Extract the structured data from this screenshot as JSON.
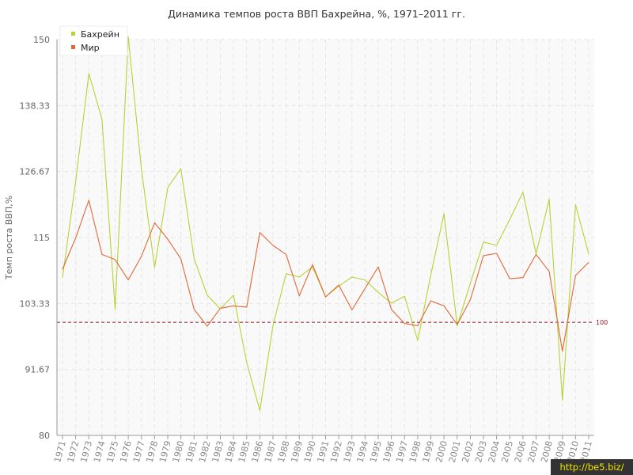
{
  "chart_data": {
    "type": "line",
    "title": "Динамика темпов роста ВВП Бахрейна, %, 1971–2011 гг.",
    "ylabel": "Темп роста ВВП,%",
    "xlabel": "",
    "ylim": [
      80,
      150
    ],
    "yticks": [
      "80",
      "91.67",
      "103.33",
      "115",
      "126.67",
      "138.33",
      "150"
    ],
    "x": [
      "1971",
      "1972",
      "1973",
      "1974",
      "1975",
      "1976",
      "1977",
      "1978",
      "1979",
      "1980",
      "1981",
      "1982",
      "1983",
      "1984",
      "1985",
      "1986",
      "1987",
      "1988",
      "1989",
      "1990",
      "1991",
      "1992",
      "1993",
      "1994",
      "1995",
      "1996",
      "1997",
      "1998",
      "1999",
      "2000",
      "2001",
      "2002",
      "2003",
      "2004",
      "2005",
      "2006",
      "2007",
      "2008",
      "2009",
      "2010",
      "2011"
    ],
    "series": [
      {
        "name": "Бахрейн",
        "color": "#b5d334",
        "values": [
          107.9,
          124.9,
          144.0,
          135.9,
          102.3,
          150.5,
          127.0,
          109.7,
          123.8,
          127.2,
          111.3,
          104.8,
          102.4,
          104.8,
          92.9,
          84.4,
          99.4,
          108.6,
          108.0,
          109.8,
          104.5,
          106.4,
          108.0,
          107.5,
          105.3,
          103.4,
          104.6,
          96.8,
          108.4,
          119.2,
          99.4,
          106.9,
          114.2,
          113.6,
          118.2,
          123.0,
          112.1,
          121.8,
          86.2,
          120.8,
          112.1
        ]
      },
      {
        "name": "Мир",
        "color": "#e06838",
        "values": [
          109.4,
          114.9,
          121.6,
          112.0,
          111.1,
          107.5,
          111.7,
          117.6,
          114.7,
          111.2,
          102.3,
          99.3,
          102.5,
          102.9,
          102.7,
          115.9,
          113.6,
          112.0,
          104.7,
          110.2,
          104.5,
          106.6,
          102.2,
          106.0,
          109.8,
          102.3,
          99.8,
          99.4,
          103.8,
          102.9,
          99.6,
          104.0,
          111.8,
          112.2,
          107.7,
          107.9,
          112.0,
          109.0,
          94.9,
          108.3,
          110.6
        ]
      }
    ],
    "reference_line": {
      "value": 100,
      "label": "100",
      "color": "#8b1a2a"
    },
    "grid": true,
    "legend_position": "top-left"
  },
  "watermark": "http://be5.biz/"
}
